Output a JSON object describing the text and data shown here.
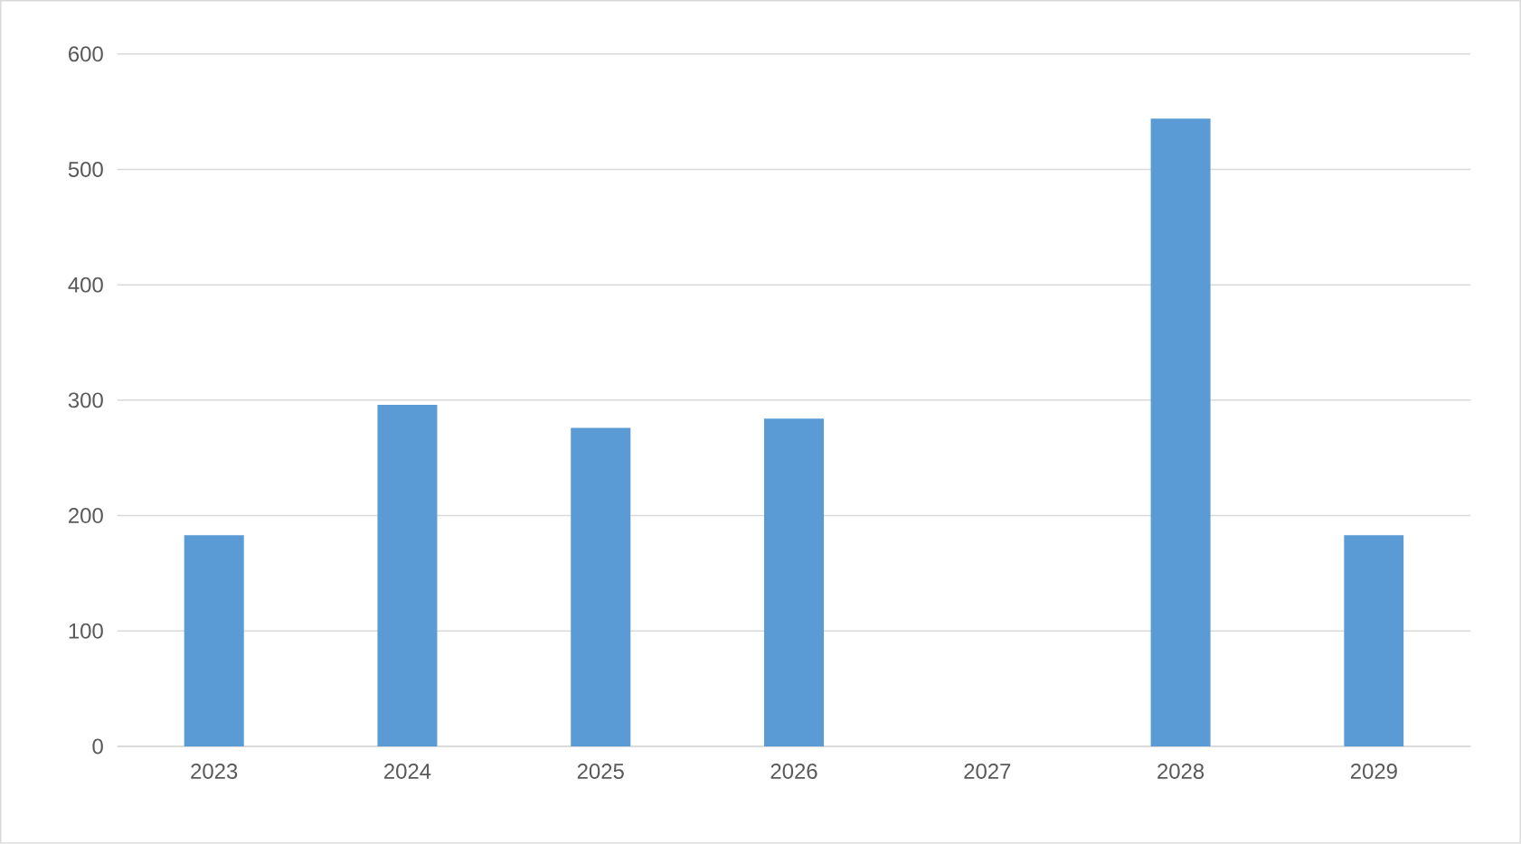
{
  "chart_data": {
    "type": "bar",
    "categories": [
      "2023",
      "2024",
      "2025",
      "2026",
      "2027",
      "2028",
      "2029"
    ],
    "values": [
      183,
      296,
      276,
      284,
      null,
      544,
      183
    ],
    "color": "#5b9bd5",
    "ylim": [
      0,
      600
    ],
    "yticks": [
      0,
      100,
      200,
      300,
      400,
      500,
      600
    ],
    "grid": "y"
  }
}
